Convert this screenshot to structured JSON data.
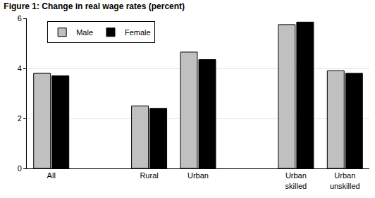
{
  "chart_data": {
    "type": "bar",
    "title": "Figure 1: Change in real wage rates (percent)",
    "categories": [
      "All",
      null,
      "Rural",
      "Urban",
      null,
      "Urban skilled",
      "Urban unskilled"
    ],
    "series": [
      {
        "name": "Male",
        "color": "#c0c0c0",
        "values": [
          3.8,
          null,
          2.5,
          4.65,
          null,
          5.75,
          3.9
        ]
      },
      {
        "name": "Female",
        "color": "#000000",
        "values": [
          3.7,
          null,
          2.4,
          4.35,
          null,
          5.85,
          3.8
        ]
      }
    ],
    "ylim": [
      0,
      6
    ],
    "yticks": [
      0,
      2,
      4,
      6
    ],
    "grid": true,
    "legend": "top-left"
  }
}
